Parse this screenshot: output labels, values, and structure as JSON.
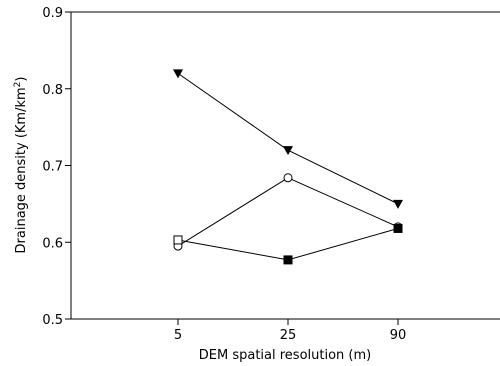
{
  "chart_data": {
    "type": "line",
    "x": [
      "5",
      "25",
      "90"
    ],
    "xlabel": "DEM spatial resolution (m)",
    "ylabel_main": "Drainage density (Km/km",
    "ylabel_sup": "2",
    "ylabel_tail": ")",
    "ylim": [
      0.5,
      0.9
    ],
    "yticks": [
      "0.5",
      "0.6",
      "0.7",
      "0.8",
      "0.9"
    ],
    "grid": false,
    "series": [
      {
        "marker": "triangle-down-filled",
        "values": [
          0.82,
          0.72,
          0.65
        ]
      },
      {
        "marker": "circle-open",
        "values": [
          0.595,
          0.684,
          0.62
        ]
      },
      {
        "marker": "square-mixed",
        "values": [
          0.603,
          0.577,
          0.618
        ]
      }
    ]
  }
}
